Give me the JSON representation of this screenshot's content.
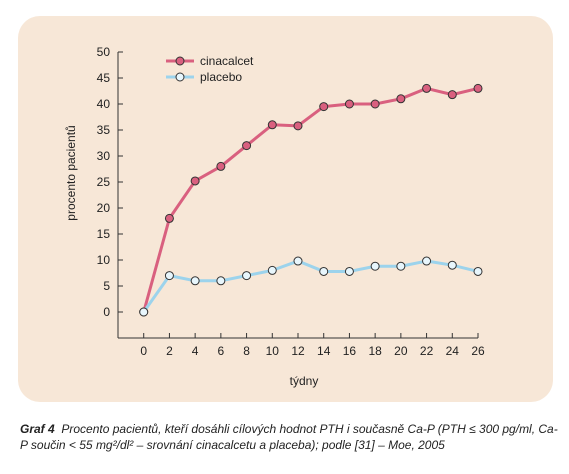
{
  "chart_data": {
    "type": "line",
    "x": [
      0,
      2,
      4,
      6,
      8,
      10,
      12,
      14,
      16,
      18,
      20,
      22,
      24,
      26
    ],
    "series": [
      {
        "name": "cinacalcet",
        "color": "#d9607f",
        "marker_fill": "#d9607f",
        "values": [
          0,
          18,
          25.2,
          28,
          32,
          36,
          35.8,
          39.5,
          40,
          40,
          41,
          43,
          41.8,
          43
        ]
      },
      {
        "name": "placebo",
        "color": "#9cd3ec",
        "marker_fill": "#e8f6fc",
        "values": [
          0,
          7,
          6,
          6,
          7,
          8,
          9.8,
          7.8,
          7.8,
          8.8,
          8.8,
          9.8,
          9,
          7.8
        ]
      }
    ],
    "xlabel": "týdny",
    "ylabel": "procento pacientů",
    "xticks": [
      "0",
      "2",
      "4",
      "6",
      "8",
      "10",
      "12",
      "14",
      "16",
      "18",
      "20",
      "22",
      "24",
      "26"
    ],
    "yticks": [
      "0",
      "5",
      "10",
      "15",
      "20",
      "25",
      "30",
      "35",
      "40",
      "45",
      "50"
    ],
    "xlim": [
      -2,
      26
    ],
    "ylim": [
      -5,
      50
    ],
    "grid": false,
    "legend": "top-left"
  },
  "caption": {
    "label": "Graf 4",
    "text": "Procento pacientů, kteří dosáhli cílových hodnot PTH i současně Ca-P (PTH ≤ 300 pg/ml, Ca-P součin < 55 mg²/dl² – srovnání cinacalcetu a placeba); podle [31] – Moe, 2005"
  }
}
